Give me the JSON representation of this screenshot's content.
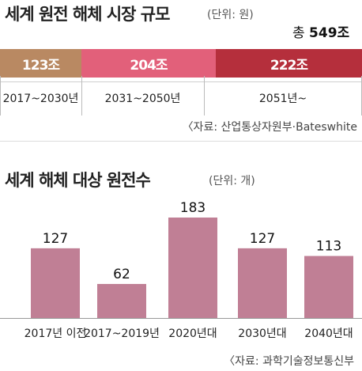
{
  "title1": "세계 원전 해체 시장 규모",
  "unit1": "(단위: 원)",
  "total_prefix": "총",
  "total_value": "549조",
  "source1": "〈자료: 산업통상자원부·Bateswhite",
  "title2": "세계 해체 대상 원전수",
  "unit2": "(단위: 개)",
  "source2": "〈자료: 과학기술정보통신부",
  "colors": {
    "seg1": "#b98962",
    "seg2": "#e2607a",
    "seg3": "#b52f3c",
    "bar": "#c07f95"
  },
  "chart_data": [
    {
      "type": "bar",
      "orientation": "horizontal-stacked",
      "title": "세계 원전 해체 시장 규모",
      "unit": "원",
      "categories": [
        "2017~2030년",
        "2031~2050년",
        "2051년~"
      ],
      "values": [
        123,
        204,
        222
      ],
      "value_labels": [
        "123조",
        "204조",
        "222조"
      ],
      "total_label": "총 549조"
    },
    {
      "type": "bar",
      "title": "세계 해체 대상 원전수",
      "unit": "개",
      "categories": [
        "2017년 이전",
        "2017~2019년",
        "2020년대",
        "2030년대",
        "2040년대"
      ],
      "values": [
        127,
        62,
        183,
        127,
        113
      ],
      "ylim": [
        0,
        183
      ]
    }
  ]
}
